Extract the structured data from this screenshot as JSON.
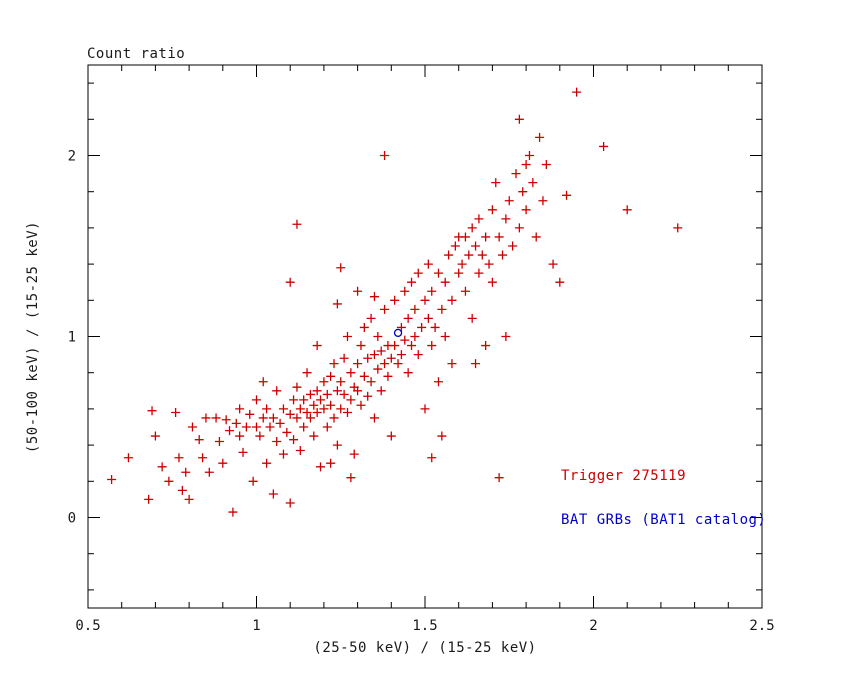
{
  "title": "Count ratio",
  "colors": {
    "trigger_red": "#cc0000",
    "catalog_blue": "#0000cc",
    "axis": "#000000",
    "background": "#ffffff"
  },
  "legend": {
    "trigger": "Trigger 275119",
    "catalog": "BAT GRBs (BAT1 catalog)"
  },
  "chart_data": {
    "type": "scatter",
    "title": "Count ratio",
    "xlabel": "(25-50 keV) / (15-25 keV)",
    "ylabel": "(50-100 keV) / (15-25 keV)",
    "xlim": [
      0.5,
      2.5
    ],
    "ylim": [
      -0.5,
      2.5
    ],
    "x_major_ticks": [
      0.5,
      1.0,
      1.5,
      2.0,
      2.5
    ],
    "x_tick_labels": [
      "0.5",
      "1",
      "1.5",
      "2",
      "2.5"
    ],
    "y_major_ticks": [
      0,
      1,
      2
    ],
    "y_tick_labels": [
      "0",
      "1",
      "2"
    ],
    "x_minor_step": 0.1,
    "y_minor_step": 0.2,
    "grid": false,
    "legend_position": "lower-right",
    "series": [
      {
        "name": "Trigger 275119",
        "marker": "plus",
        "color": "#cc0000",
        "points": [
          [
            0.57,
            0.21
          ],
          [
            0.62,
            0.33
          ],
          [
            0.68,
            0.1
          ],
          [
            0.69,
            0.59
          ],
          [
            0.7,
            0.45
          ],
          [
            0.72,
            0.28
          ],
          [
            0.74,
            0.2
          ],
          [
            0.76,
            0.58
          ],
          [
            0.77,
            0.33
          ],
          [
            0.78,
            0.15
          ],
          [
            0.79,
            0.25
          ],
          [
            0.8,
            0.1
          ],
          [
            0.81,
            0.5
          ],
          [
            0.83,
            0.43
          ],
          [
            0.84,
            0.33
          ],
          [
            0.85,
            0.55
          ],
          [
            0.86,
            0.25
          ],
          [
            0.88,
            0.55
          ],
          [
            0.89,
            0.42
          ],
          [
            0.9,
            0.3
          ],
          [
            0.91,
            0.54
          ],
          [
            0.92,
            0.48
          ],
          [
            0.93,
            0.03
          ],
          [
            0.94,
            0.52
          ],
          [
            0.95,
            0.45
          ],
          [
            0.95,
            0.6
          ],
          [
            0.96,
            0.36
          ],
          [
            0.97,
            0.5
          ],
          [
            0.98,
            0.57
          ],
          [
            0.99,
            0.2
          ],
          [
            1.0,
            0.5
          ],
          [
            1.0,
            0.65
          ],
          [
            1.01,
            0.45
          ],
          [
            1.02,
            0.55
          ],
          [
            1.02,
            0.75
          ],
          [
            1.03,
            0.3
          ],
          [
            1.03,
            0.6
          ],
          [
            1.04,
            0.5
          ],
          [
            1.05,
            0.13
          ],
          [
            1.05,
            0.55
          ],
          [
            1.06,
            0.42
          ],
          [
            1.06,
            0.7
          ],
          [
            1.07,
            0.52
          ],
          [
            1.08,
            0.35
          ],
          [
            1.08,
            0.6
          ],
          [
            1.09,
            0.47
          ],
          [
            1.1,
            0.08
          ],
          [
            1.1,
            0.57
          ],
          [
            1.11,
            0.65
          ],
          [
            1.11,
            0.43
          ],
          [
            1.12,
            0.55
          ],
          [
            1.12,
            0.72
          ],
          [
            1.12,
            1.62
          ],
          [
            1.13,
            0.6
          ],
          [
            1.13,
            0.37
          ],
          [
            1.14,
            0.65
          ],
          [
            1.14,
            0.5
          ],
          [
            1.15,
            0.58
          ],
          [
            1.15,
            0.8
          ],
          [
            1.16,
            0.68
          ],
          [
            1.16,
            0.55
          ],
          [
            1.17,
            0.62
          ],
          [
            1.17,
            0.45
          ],
          [
            1.18,
            0.7
          ],
          [
            1.18,
            0.58
          ],
          [
            1.19,
            0.65
          ],
          [
            1.19,
            0.28
          ],
          [
            1.2,
            0.75
          ],
          [
            1.2,
            0.6
          ],
          [
            1.1,
            1.3
          ],
          [
            1.21,
            0.68
          ],
          [
            1.21,
            0.5
          ],
          [
            1.22,
            0.78
          ],
          [
            1.22,
            0.62
          ],
          [
            1.23,
            0.55
          ],
          [
            1.23,
            0.85
          ],
          [
            1.24,
            0.7
          ],
          [
            1.24,
            0.4
          ],
          [
            1.25,
            0.75
          ],
          [
            1.25,
            0.6
          ],
          [
            1.26,
            0.88
          ],
          [
            1.26,
            0.68
          ],
          [
            1.27,
            0.58
          ],
          [
            1.27,
            1.0
          ],
          [
            1.28,
            0.8
          ],
          [
            1.28,
            0.65
          ],
          [
            1.29,
            0.72
          ],
          [
            1.29,
            0.35
          ],
          [
            1.3,
            0.85
          ],
          [
            1.3,
            0.7
          ],
          [
            1.31,
            0.95
          ],
          [
            1.31,
            0.62
          ],
          [
            1.32,
            0.78
          ],
          [
            1.32,
            1.05
          ],
          [
            1.33,
            0.88
          ],
          [
            1.33,
            0.67
          ],
          [
            1.34,
            0.75
          ],
          [
            1.34,
            1.1
          ],
          [
            1.35,
            0.9
          ],
          [
            1.35,
            0.55
          ],
          [
            1.36,
            0.82
          ],
          [
            1.36,
            1.0
          ],
          [
            1.37,
            0.7
          ],
          [
            1.37,
            0.92
          ],
          [
            1.38,
            0.85
          ],
          [
            1.38,
            1.15
          ],
          [
            1.39,
            0.78
          ],
          [
            1.39,
            0.95
          ],
          [
            1.4,
            0.88
          ],
          [
            1.4,
            0.45
          ],
          [
            1.25,
            1.38
          ],
          [
            1.3,
            1.25
          ],
          [
            1.22,
            0.3
          ],
          [
            1.28,
            0.22
          ],
          [
            1.38,
            2.0
          ],
          [
            1.24,
            1.18
          ],
          [
            1.35,
            1.22
          ],
          [
            1.18,
            0.95
          ],
          [
            1.41,
            0.95
          ],
          [
            1.41,
            1.2
          ],
          [
            1.42,
            0.85
          ],
          [
            1.43,
            1.05
          ],
          [
            1.43,
            0.9
          ],
          [
            1.44,
            1.25
          ],
          [
            1.44,
            0.98
          ],
          [
            1.45,
            1.1
          ],
          [
            1.45,
            0.8
          ],
          [
            1.46,
            1.3
          ],
          [
            1.46,
            0.95
          ],
          [
            1.47,
            1.15
          ],
          [
            1.47,
            1.0
          ],
          [
            1.48,
            0.9
          ],
          [
            1.48,
            1.35
          ],
          [
            1.49,
            1.05
          ],
          [
            1.5,
            1.2
          ],
          [
            1.5,
            0.6
          ],
          [
            1.51,
            1.4
          ],
          [
            1.51,
            1.1
          ],
          [
            1.52,
            0.95
          ],
          [
            1.52,
            1.25
          ],
          [
            1.52,
            0.33
          ],
          [
            1.53,
            1.05
          ],
          [
            1.54,
            1.35
          ],
          [
            1.54,
            0.75
          ],
          [
            1.55,
            1.15
          ],
          [
            1.55,
            0.45
          ],
          [
            1.56,
            1.3
          ],
          [
            1.56,
            1.0
          ],
          [
            1.57,
            1.45
          ],
          [
            1.58,
            1.2
          ],
          [
            1.58,
            0.85
          ],
          [
            1.59,
            1.5
          ],
          [
            1.6,
            1.35
          ],
          [
            1.6,
            1.55
          ],
          [
            1.61,
            1.4
          ],
          [
            1.62,
            1.55
          ],
          [
            1.62,
            1.25
          ],
          [
            1.63,
            1.45
          ],
          [
            1.64,
            1.6
          ],
          [
            1.64,
            1.1
          ],
          [
            1.65,
            1.5
          ],
          [
            1.65,
            0.85
          ],
          [
            1.66,
            1.35
          ],
          [
            1.66,
            1.65
          ],
          [
            1.67,
            1.45
          ],
          [
            1.68,
            1.55
          ],
          [
            1.68,
            0.95
          ],
          [
            1.69,
            1.4
          ],
          [
            1.7,
            1.7
          ],
          [
            1.7,
            1.3
          ],
          [
            1.71,
            1.85
          ],
          [
            1.72,
            1.55
          ],
          [
            1.72,
            0.22
          ],
          [
            1.73,
            1.45
          ],
          [
            1.74,
            1.65
          ],
          [
            1.74,
            1.0
          ],
          [
            1.75,
            1.75
          ],
          [
            1.76,
            1.5
          ],
          [
            1.77,
            1.9
          ],
          [
            1.78,
            1.6
          ],
          [
            1.78,
            2.2
          ],
          [
            1.79,
            1.8
          ],
          [
            1.8,
            1.7
          ],
          [
            1.8,
            1.95
          ],
          [
            1.81,
            2.0
          ],
          [
            1.82,
            1.85
          ],
          [
            1.83,
            1.55
          ],
          [
            1.84,
            2.1
          ],
          [
            1.85,
            1.75
          ],
          [
            1.86,
            1.95
          ],
          [
            1.88,
            1.4
          ],
          [
            1.9,
            1.3
          ],
          [
            1.92,
            1.78
          ],
          [
            1.95,
            2.35
          ],
          [
            2.03,
            2.05
          ],
          [
            2.1,
            1.7
          ],
          [
            2.25,
            1.6
          ]
        ]
      },
      {
        "name": "BAT GRBs (BAT1 catalog)",
        "marker": "circle-open",
        "color": "#0000cc",
        "points": [
          [
            1.42,
            1.02
          ]
        ]
      }
    ]
  }
}
